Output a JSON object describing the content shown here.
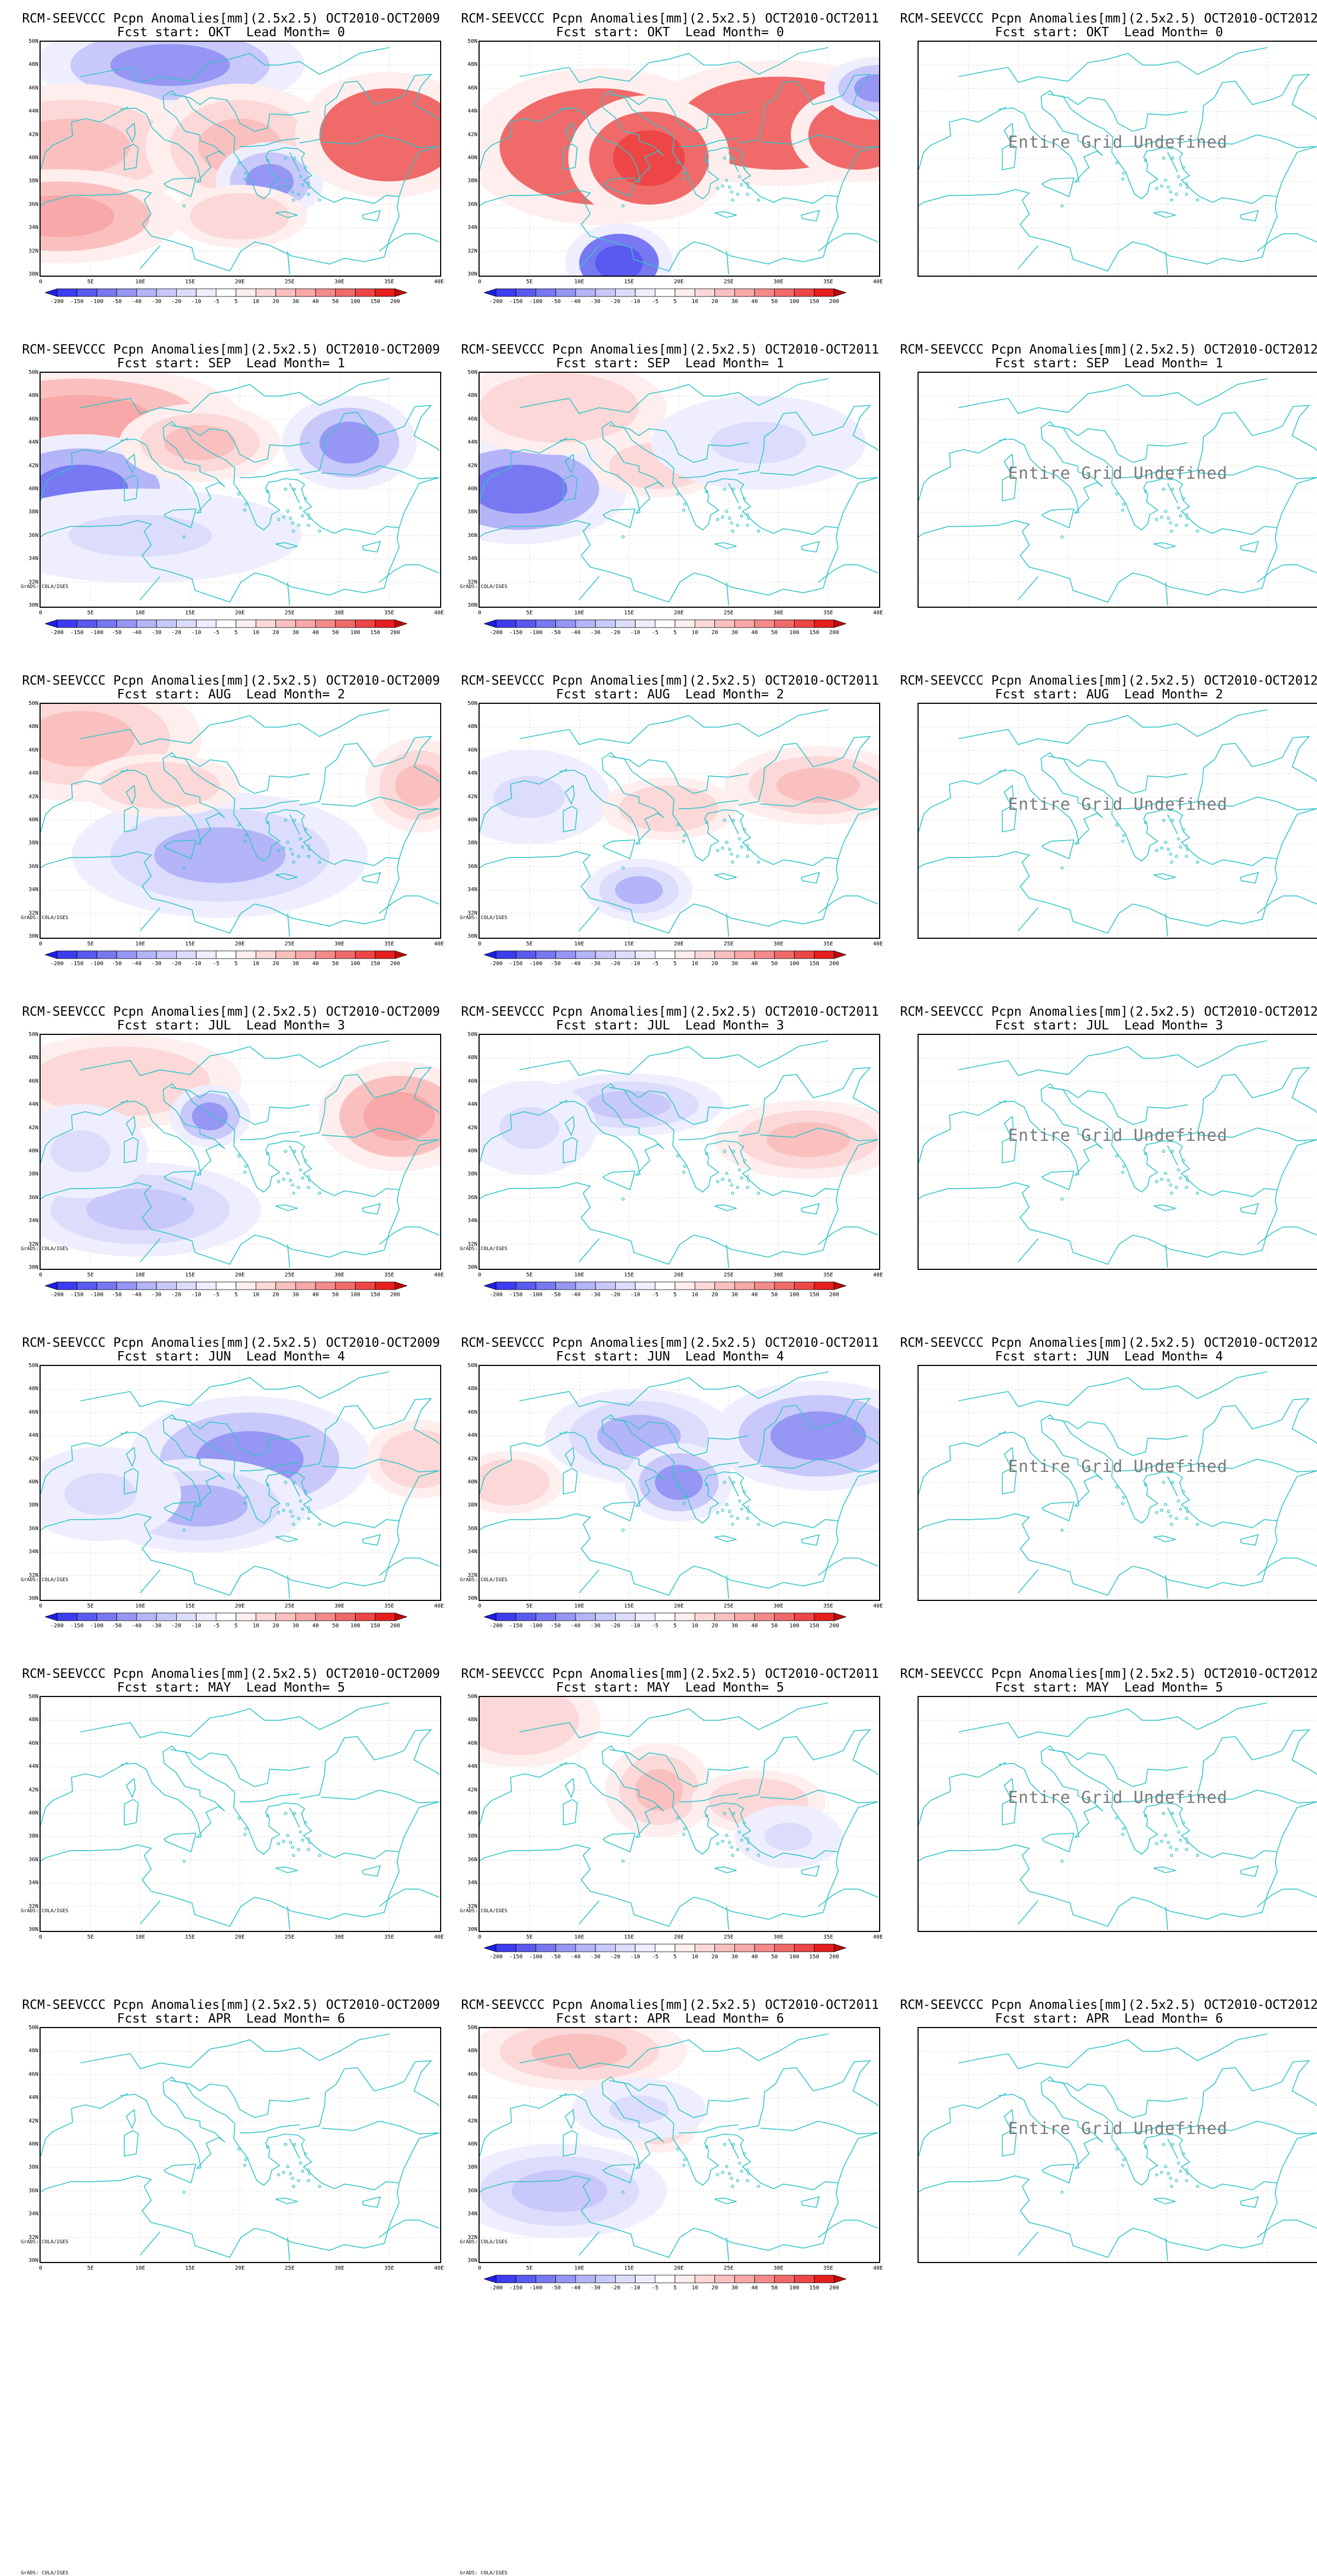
{
  "columns": [
    {
      "title": "RCM-SEEVCCC Pcpn Anomalies[mm](2.5x2.5) OCT2010-OCT2009",
      "cbar": true
    },
    {
      "title": "RCM-SEEVCCC Pcpn Anomalies[mm](2.5x2.5) OCT2010-OCT2011",
      "cbar": true
    },
    {
      "title": "RCM-SEEVCCC Pcpn Anomalies[mm](2.5x2.5) OCT2010-OCT2012",
      "cbar": false
    }
  ],
  "rows": [
    {
      "subtitle": "Fcst start: OKT  Lead Month= 0"
    },
    {
      "subtitle": "Fcst start: SEP  Lead Month= 1"
    },
    {
      "subtitle": "Fcst start: AUG  Lead Month= 2"
    },
    {
      "subtitle": "Fcst start: JUL  Lead Month= 3"
    },
    {
      "subtitle": "Fcst start: JUN  Lead Month= 4"
    },
    {
      "subtitle": "Fcst start: MAY  Lead Month= 5"
    },
    {
      "subtitle": "Fcst start: APR  Lead Month= 6"
    }
  ],
  "undefined_text": "Entire Grid Undefined",
  "grads_text": "GrADS: COLA/IGES",
  "x_ticks": [
    "0",
    "5E",
    "10E",
    "15E",
    "20E",
    "25E",
    "30E",
    "35E",
    "40E"
  ],
  "y_ticks": [
    "50N",
    "48N",
    "46N",
    "44N",
    "42N",
    "40N",
    "38N",
    "36N",
    "34N",
    "32N",
    "30N"
  ],
  "colorbar": {
    "labels": [
      "-200",
      "-150",
      "-100",
      "-50",
      "-40",
      "-30",
      "-20",
      "-10",
      "-5",
      "5",
      "10",
      "20",
      "30",
      "40",
      "50",
      "100",
      "150",
      "200"
    ],
    "colors": [
      "#1e1ee6",
      "#3c3cf0",
      "#5a5af0",
      "#7878f2",
      "#9696f4",
      "#b4b4f8",
      "#c8c8fa",
      "#dcdcfc",
      "#eeeefe",
      "#ffffff",
      "#feeeee",
      "#fcd8d8",
      "#fac0c0",
      "#f8a8a8",
      "#f48a8a",
      "#f06a6a",
      "#ee4646",
      "#e61e1e",
      "#be0a0a"
    ]
  },
  "colors": {
    "coast": "#33c5c8",
    "grid": "#d8d8d8",
    "blue": "#5a5af0",
    "red": "#ee3030"
  },
  "map_data": [
    [
      [
        {
          "x": 13,
          "y": 48,
          "rx": 10,
          "ry": 3,
          "v": -40
        },
        {
          "x": 3,
          "y": 41,
          "rx": 10,
          "ry": 4,
          "v": 30
        },
        {
          "x": 20,
          "y": 41,
          "rx": 7,
          "ry": 4,
          "v": 30
        },
        {
          "x": 2,
          "y": 35,
          "rx": 9,
          "ry": 3,
          "v": 40
        },
        {
          "x": 23,
          "y": 38,
          "rx": 4,
          "ry": 2.5,
          "v": -40
        },
        {
          "x": 35,
          "y": 42,
          "rx": 7,
          "ry": 4,
          "v": 100
        },
        {
          "x": 20,
          "y": 35,
          "rx": 5,
          "ry": 2,
          "v": 20
        }
      ],
      [
        {
          "x": 12,
          "y": 41,
          "rx": 10,
          "ry": 5,
          "v": 100
        },
        {
          "x": 30,
          "y": 43,
          "rx": 10,
          "ry": 4,
          "v": 100
        },
        {
          "x": 17,
          "y": 40,
          "rx": 6,
          "ry": 4,
          "v": 150
        },
        {
          "x": 38,
          "y": 42,
          "rx": 5,
          "ry": 3,
          "v": 100
        },
        {
          "x": 14,
          "y": 31,
          "rx": 4,
          "ry": 2.5,
          "v": -100
        },
        {
          "x": 40,
          "y": 46,
          "rx": 4,
          "ry": 2,
          "v": -40
        }
      ],
      []
    ],
    [
      [
        {
          "x": 4,
          "y": 46,
          "rx": 12,
          "ry": 3.5,
          "v": 40
        },
        {
          "x": 4,
          "y": 40,
          "rx": 8,
          "ry": 3.5,
          "v": -50
        },
        {
          "x": 16,
          "y": 44,
          "rx": 6,
          "ry": 2.5,
          "v": 30
        },
        {
          "x": 31,
          "y": 44,
          "rx": 5,
          "ry": 3,
          "v": -40
        },
        {
          "x": 10,
          "y": 36,
          "rx": 12,
          "ry": 3,
          "v": -10
        }
      ],
      [
        {
          "x": 4,
          "y": 40,
          "rx": 8,
          "ry": 3.5,
          "v": -50
        },
        {
          "x": 8,
          "y": 47,
          "rx": 8,
          "ry": 3,
          "v": 20
        },
        {
          "x": 18,
          "y": 42,
          "rx": 5,
          "ry": 2,
          "v": 20
        },
        {
          "x": 28,
          "y": 44,
          "rx": 8,
          "ry": 3,
          "v": -10
        }
      ],
      []
    ],
    [
      [
        {
          "x": 4,
          "y": 47,
          "rx": 9,
          "ry": 4,
          "v": 30
        },
        {
          "x": 18,
          "y": 37,
          "rx": 11,
          "ry": 4,
          "v": -30
        },
        {
          "x": 38,
          "y": 43,
          "rx": 4,
          "ry": 3,
          "v": 30
        },
        {
          "x": 12,
          "y": 43,
          "rx": 6,
          "ry": 2,
          "v": 20
        }
      ],
      [
        {
          "x": 34,
          "y": 43,
          "rx": 7,
          "ry": 2.5,
          "v": 30
        },
        {
          "x": 16,
          "y": 34,
          "rx": 4,
          "ry": 2,
          "v": -30
        },
        {
          "x": 5,
          "y": 42,
          "rx": 6,
          "ry": 3,
          "v": -10
        },
        {
          "x": 19,
          "y": 41,
          "rx": 5,
          "ry": 2,
          "v": 20
        }
      ],
      []
    ],
    [
      [
        {
          "x": 8,
          "y": 46,
          "rx": 9,
          "ry": 3,
          "v": 20
        },
        {
          "x": 17,
          "y": 43,
          "rx": 3,
          "ry": 2,
          "v": -40
        },
        {
          "x": 36,
          "y": 43,
          "rx": 6,
          "ry": 3.5,
          "v": 40
        },
        {
          "x": 10,
          "y": 35,
          "rx": 9,
          "ry": 3,
          "v": -20
        },
        {
          "x": 4,
          "y": 40,
          "rx": 5,
          "ry": 3,
          "v": -10
        }
      ],
      [
        {
          "x": 15,
          "y": 44,
          "rx": 7,
          "ry": 2,
          "v": -20
        },
        {
          "x": 33,
          "y": 41,
          "rx": 7,
          "ry": 2.5,
          "v": 30
        },
        {
          "x": 5,
          "y": 42,
          "rx": 5,
          "ry": 3,
          "v": -10
        }
      ],
      []
    ],
    [
      [
        {
          "x": 21,
          "y": 42,
          "rx": 9,
          "ry": 4,
          "v": -40
        },
        {
          "x": 16,
          "y": 38,
          "rx": 8,
          "ry": 3,
          "v": -30
        },
        {
          "x": 38,
          "y": 42,
          "rx": 4,
          "ry": 2.5,
          "v": 20
        },
        {
          "x": 6,
          "y": 39,
          "rx": 6,
          "ry": 3,
          "v": -10
        }
      ],
      [
        {
          "x": 34,
          "y": 44,
          "rx": 8,
          "ry": 3.5,
          "v": -40
        },
        {
          "x": 16,
          "y": 44,
          "rx": 7,
          "ry": 3,
          "v": -30
        },
        {
          "x": 20,
          "y": 40,
          "rx": 4,
          "ry": 2.5,
          "v": -40
        },
        {
          "x": 3,
          "y": 40,
          "rx": 4,
          "ry": 2,
          "v": 20
        }
      ],
      []
    ],
    [
      [],
      [
        {
          "x": 4,
          "y": 48,
          "rx": 6,
          "ry": 3,
          "v": 20
        },
        {
          "x": 18,
          "y": 42,
          "rx": 4,
          "ry": 3,
          "v": 30
        },
        {
          "x": 28,
          "y": 41,
          "rx": 5,
          "ry": 2,
          "v": 20
        },
        {
          "x": 31,
          "y": 38,
          "rx": 4,
          "ry": 2,
          "v": -10
        }
      ],
      []
    ],
    [
      [],
      [
        {
          "x": 10,
          "y": 48,
          "rx": 8,
          "ry": 2.5,
          "v": 30
        },
        {
          "x": 18,
          "y": 42,
          "rx": 3,
          "ry": 2,
          "v": 30
        },
        {
          "x": 8,
          "y": 36,
          "rx": 8,
          "ry": 3,
          "v": -20
        },
        {
          "x": 16,
          "y": 43,
          "rx": 5,
          "ry": 2,
          "v": -10
        }
      ],
      []
    ]
  ]
}
